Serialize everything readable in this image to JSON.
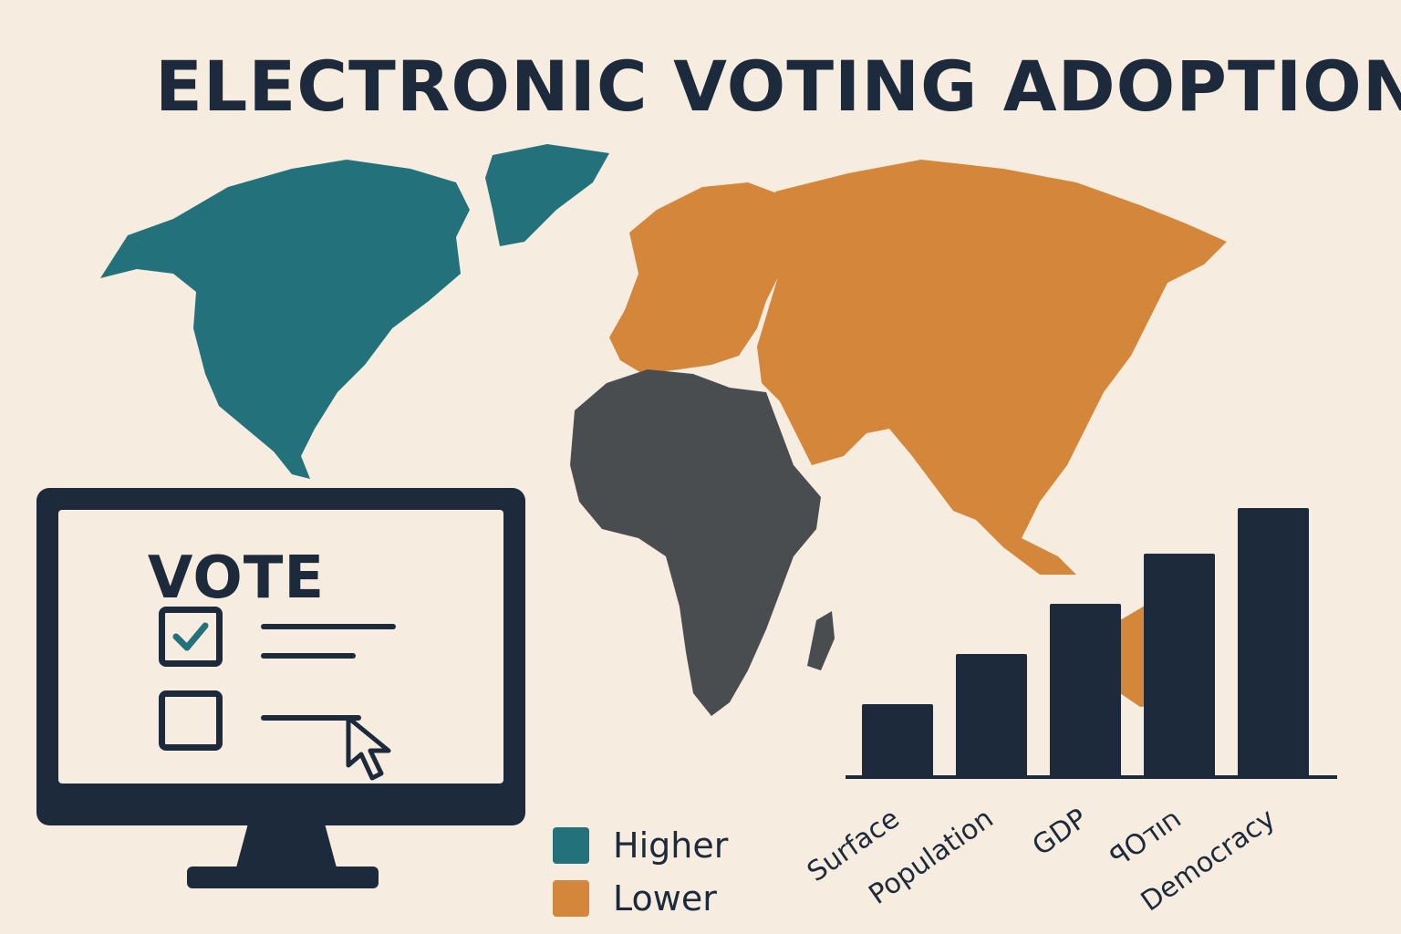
{
  "title": "ELECTRONIC VOTING ADOPTION",
  "colors": {
    "background": "#f6ecdf",
    "higher": "#23717a",
    "lower": "#d4873a",
    "neutral": "#4a4d50",
    "ink": "#1c2a3c"
  },
  "map": {
    "regions": [
      {
        "name": "North America",
        "level": "higher"
      },
      {
        "name": "Greenland",
        "level": "higher"
      },
      {
        "name": "Europe",
        "level": "lower"
      },
      {
        "name": "Asia",
        "level": "lower"
      },
      {
        "name": "Australia",
        "level": "lower"
      },
      {
        "name": "Africa",
        "level": "neutral"
      }
    ]
  },
  "ballot": {
    "heading": "VOTE",
    "options": [
      {
        "checked": true,
        "icon": "checkmark-icon"
      },
      {
        "checked": false,
        "icon": "cursor-arrow-icon"
      }
    ]
  },
  "legend": [
    {
      "label": "Higher",
      "color": "#23717a"
    },
    {
      "label": "Lower",
      "color": "#d4873a"
    }
  ],
  "chart_data": {
    "type": "bar",
    "categories": [
      "Surface",
      "Population",
      "GDP",
      "ꟼOחוד",
      "Democracy"
    ],
    "values": [
      1.6,
      2.7,
      3.8,
      4.9,
      5.9
    ],
    "ylim": [
      0,
      6
    ],
    "grid": false,
    "bar_color": "#1c2a3c",
    "y_axis_visible": false
  }
}
